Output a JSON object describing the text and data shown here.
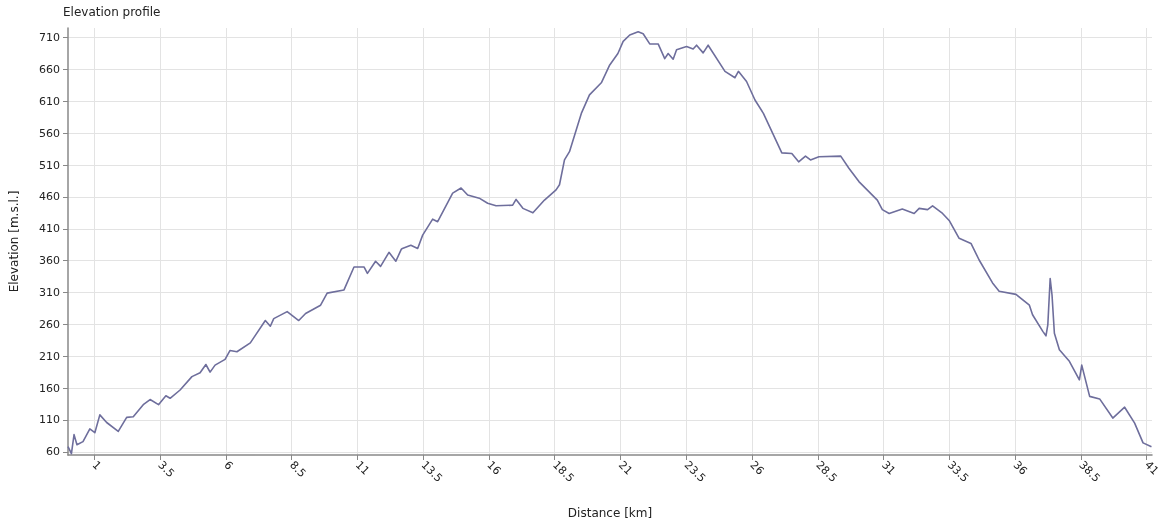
{
  "chart_data": {
    "type": "line",
    "title": "Elevation profile",
    "xlabel": "Distance [km]",
    "ylabel": "Elevation [m.s.l.]",
    "x": [
      0,
      0.13,
      0.23,
      0.34,
      0.57,
      0.83,
      1.02,
      1.21,
      1.47,
      1.91,
      2.23,
      2.48,
      2.86,
      3.12,
      3.44,
      3.72,
      3.88,
      4.26,
      4.71,
      5.02,
      5.24,
      5.4,
      5.59,
      5.97,
      6.16,
      6.42,
      6.93,
      7.5,
      7.69,
      7.82,
      8.33,
      8.77,
      9.03,
      9.6,
      9.85,
      10.49,
      10.87,
      11.25,
      11.38,
      11.69,
      11.88,
      12.2,
      12.46,
      12.67,
      12.71,
      13.03,
      13.29,
      13.48,
      13.86,
      14.05,
      14.62,
      14.94,
      15.19,
      15.63,
      15.95,
      16.27,
      16.9,
      17.03,
      17.29,
      17.67,
      18.11,
      18.55,
      18.68,
      18.87,
      19.06,
      19.51,
      19.82,
      20.27,
      20.59,
      20.9,
      21.1,
      21.35,
      21.67,
      21.86,
      22.11,
      22.43,
      22.68,
      22.81,
      23.0,
      23.13,
      23.51,
      23.76,
      23.89,
      24.14,
      24.33,
      24.97,
      25.35,
      25.48,
      25.79,
      26.11,
      26.43,
      27.13,
      27.51,
      27.77,
      28.03,
      28.22,
      28.54,
      29.37,
      29.68,
      30.06,
      30.76,
      30.95,
      31.21,
      31.71,
      32.16,
      32.35,
      32.67,
      32.86,
      33.24,
      33.49,
      33.87,
      34.32,
      34.63,
      35.14,
      35.39,
      36.03,
      36.54,
      36.66,
      37.05,
      37.17,
      37.24,
      37.33,
      37.4,
      37.49,
      37.68,
      38.06,
      38.44,
      38.53,
      38.83,
      39.21,
      39.71,
      40.16,
      40.54,
      40.86,
      41.18
    ],
    "values": [
      68,
      57,
      87,
      71,
      76,
      96,
      90,
      118,
      106,
      92,
      114,
      115,
      134,
      142,
      134,
      148,
      144,
      157,
      178,
      184,
      197,
      185,
      196,
      205,
      219,
      217,
      231,
      266,
      257,
      269,
      280,
      266,
      277,
      290,
      309,
      314,
      350,
      350,
      340,
      359,
      351,
      373,
      359,
      378,
      379,
      384,
      379,
      400,
      425,
      421,
      466,
      474,
      463,
      458,
      450,
      446,
      447,
      456,
      442,
      435,
      455,
      471,
      479,
      518,
      531,
      591,
      620,
      639,
      667,
      685,
      704,
      714,
      719,
      716,
      700,
      700,
      677,
      685,
      676,
      691,
      696,
      692,
      698,
      686,
      698,
      657,
      647,
      657,
      641,
      612,
      591,
      529,
      528,
      515,
      524,
      518,
      523,
      524,
      505,
      484,
      455,
      440,
      434,
      441,
      434,
      442,
      440,
      446,
      434,
      423,
      395,
      387,
      361,
      325,
      312,
      307,
      290,
      275,
      249,
      242,
      259,
      332,
      306,
      246,
      220,
      202,
      173,
      196,
      147,
      143,
      113,
      130,
      105,
      74,
      68
    ],
    "color": "#6e6e9c",
    "marker": "none",
    "line_style": "solid",
    "grid": true,
    "xlim": [
      0,
      41.2
    ],
    "xticks": [
      1,
      3.5,
      6,
      8.5,
      11,
      13.5,
      16,
      18.5,
      21,
      23.5,
      26,
      28.5,
      31,
      33.5,
      36,
      38.5,
      41
    ],
    "ylim": [
      55,
      725
    ],
    "yticks": [
      60,
      110,
      160,
      210,
      260,
      310,
      360,
      410,
      460,
      510,
      560,
      610,
      660,
      710
    ]
  }
}
